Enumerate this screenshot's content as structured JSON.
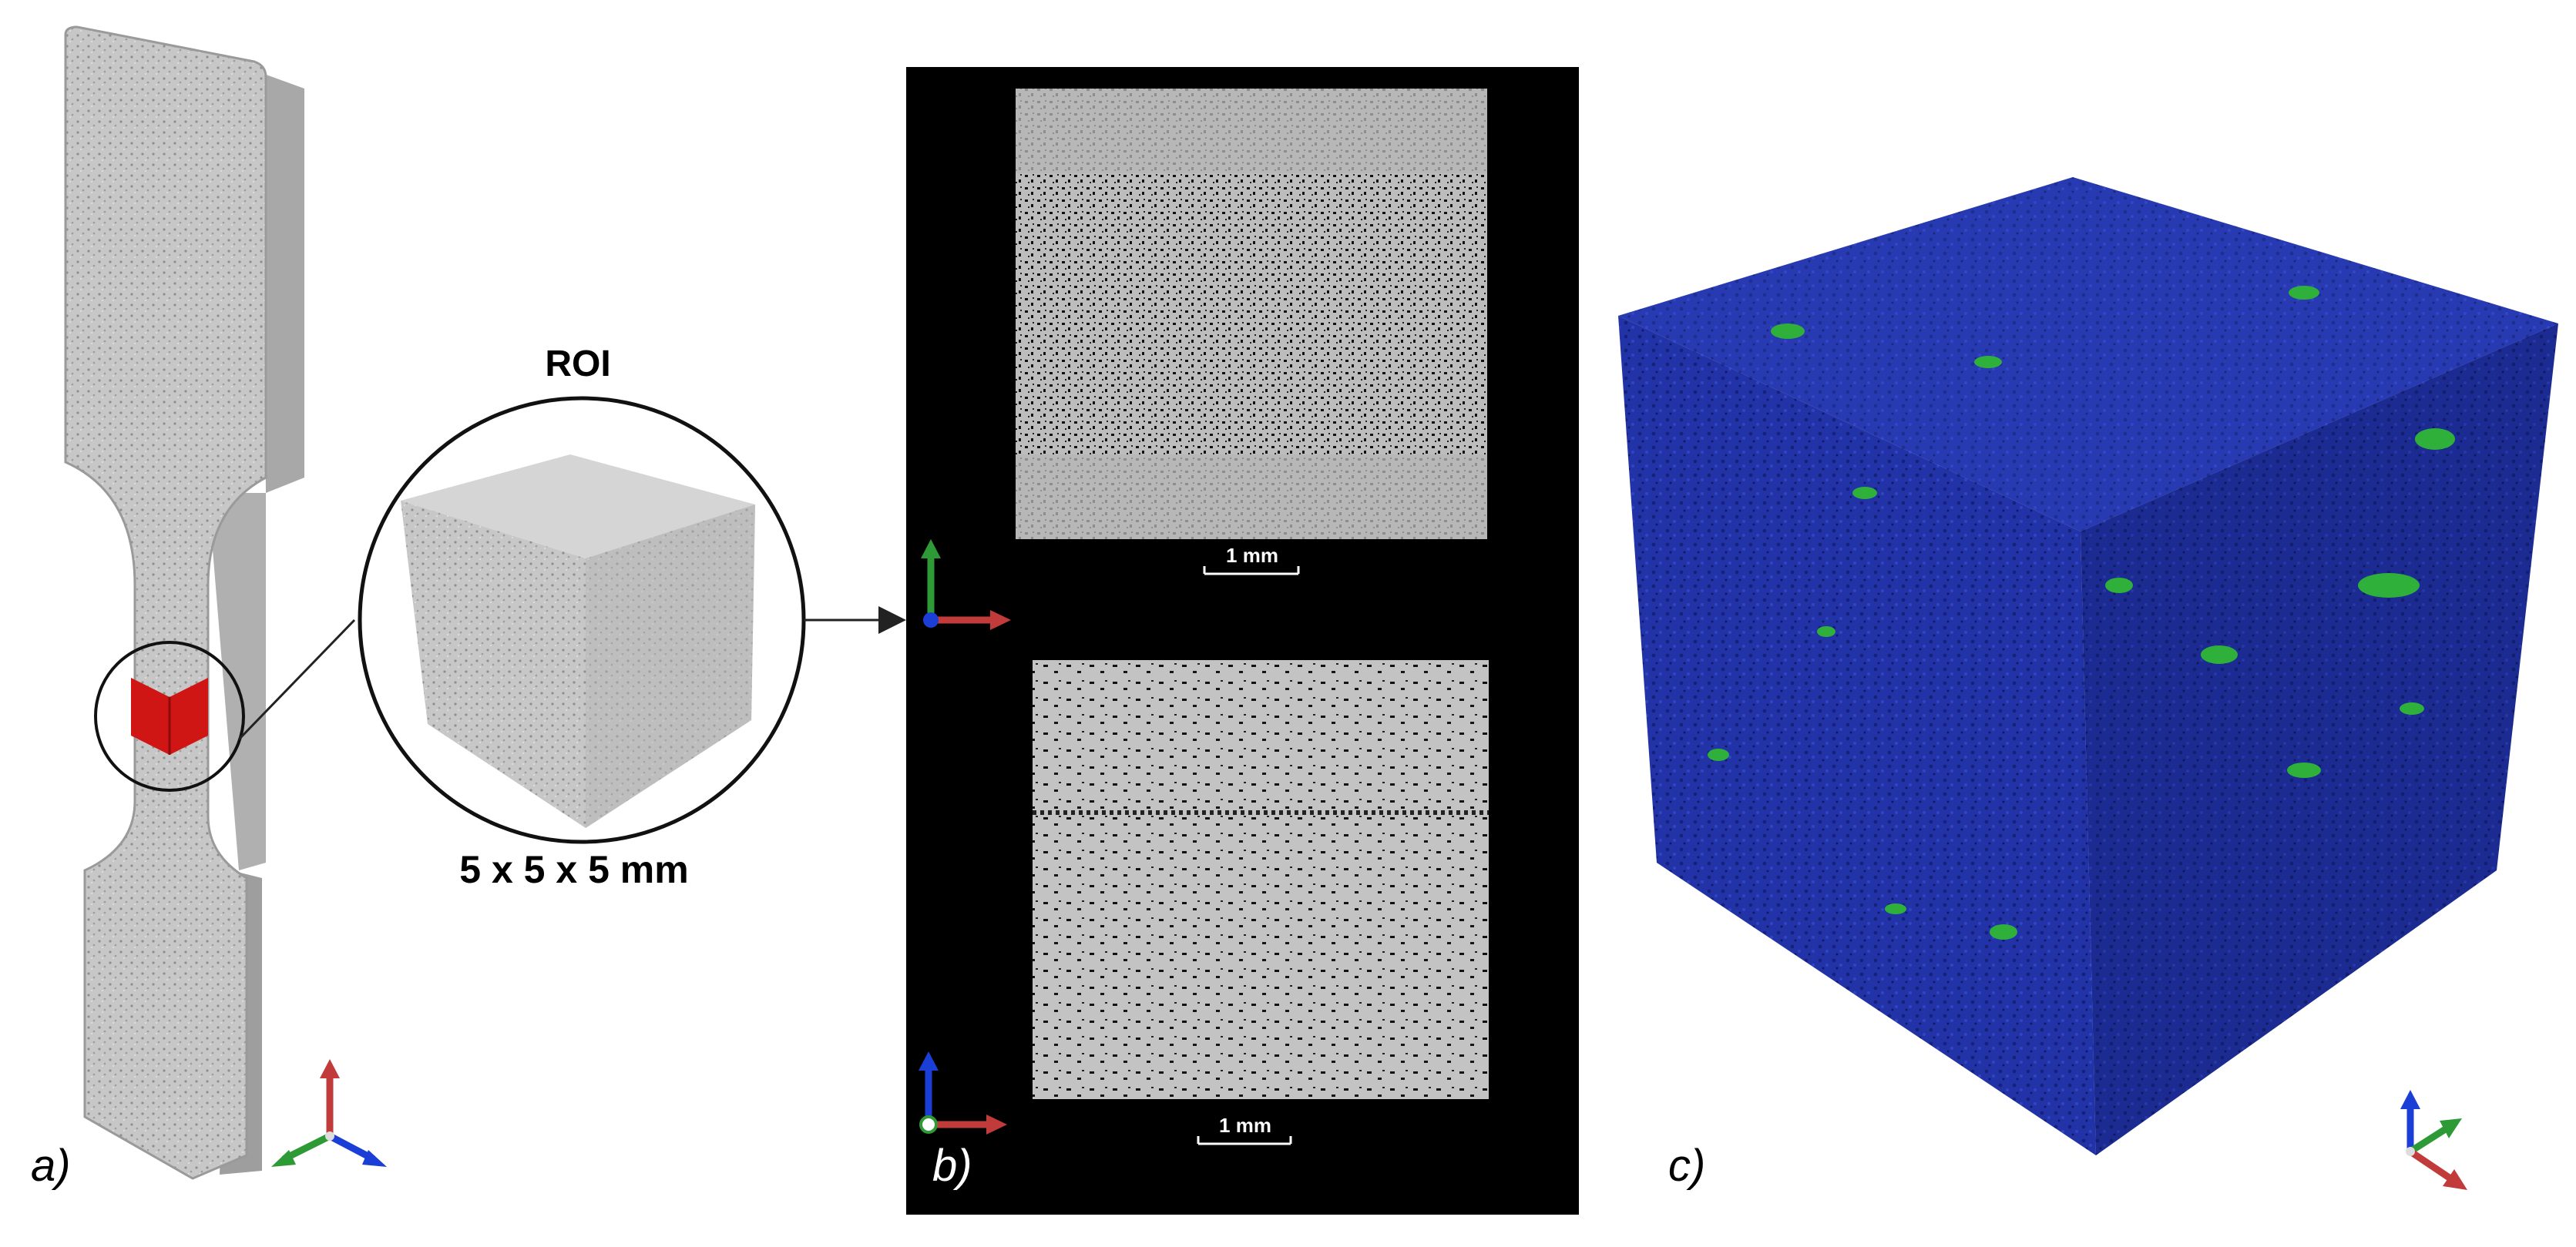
{
  "panel_a": {
    "label": "a)",
    "roi_title": "ROI",
    "roi_dimensions": "5 x 5 x 5 mm",
    "colors": {
      "specimen": "#c9c9c9",
      "roi_marker": "#d01515"
    }
  },
  "panel_b": {
    "label": "b)",
    "scale_bar_top": "1 mm",
    "scale_bar_bottom": "1 mm",
    "colors": {
      "background": "#000000",
      "slice": "#bdbdbd"
    }
  },
  "panel_c": {
    "label": "c)",
    "colors": {
      "cube_blue": "#1f2fa0",
      "inclusions_green": "#2fb03a"
    }
  },
  "axis_triad_colors": {
    "red": "#c23b3b",
    "green": "#2e9a36",
    "blue": "#1a3ed6"
  }
}
